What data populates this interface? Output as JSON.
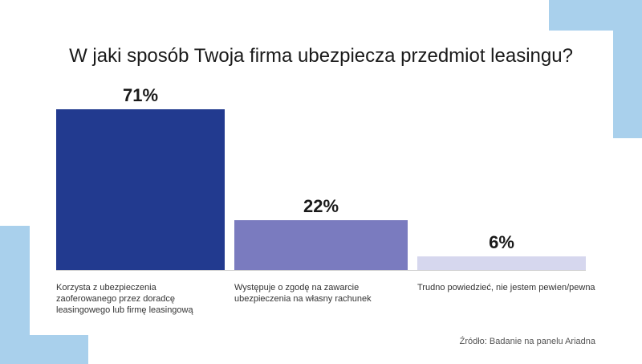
{
  "chart_data": {
    "type": "bar",
    "title": "W jaki sposób Twoja firma ubezpiecza przedmiot leasingu?",
    "categories": [
      "Korzysta z ubezpieczenia zaoferowanego przez doradcę leasingowego lub firmę leasingową",
      "Występuje o zgodę na zawarcie ubezpieczenia na własny rachunek",
      "Trudno powiedzieć, nie jestem pewien/pewna"
    ],
    "values": [
      71,
      22,
      6
    ],
    "value_labels": [
      "71%",
      "22%",
      "6%"
    ],
    "colors": [
      "#223a8f",
      "#7a7bbf",
      "#d6d7ee"
    ],
    "ylim": [
      0,
      71
    ],
    "grid": false,
    "legend": "none"
  },
  "footer": {
    "source": "Źródło: Badanie na panelu Ariadna"
  }
}
